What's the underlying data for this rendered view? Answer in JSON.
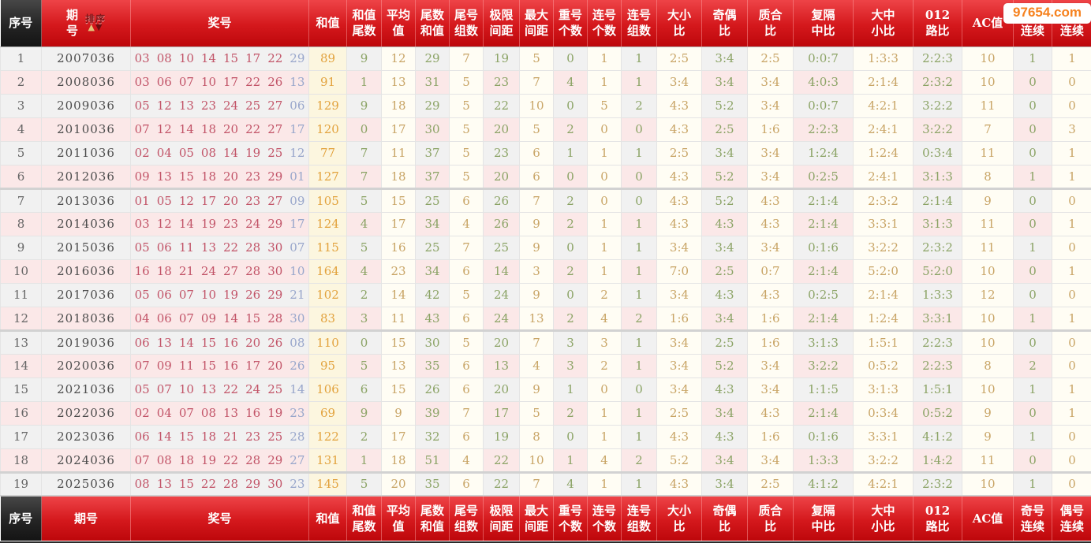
{
  "watermark": "97654.com",
  "sort": {
    "label": "排序",
    "up": "▲",
    "down": "▼"
  },
  "columns": [
    {
      "key": "seq",
      "label": "序号"
    },
    {
      "key": "period",
      "label": "期号",
      "label_top": "期\n号"
    },
    {
      "key": "numbers",
      "label": "奖号"
    },
    {
      "key": "sum",
      "label": "和值"
    },
    {
      "key": "sum_tail",
      "label": "和值\n尾数"
    },
    {
      "key": "avg",
      "label": "平均\n值"
    },
    {
      "key": "tail_sum",
      "label": "尾数\n和值"
    },
    {
      "key": "tail_groups",
      "label": "尾号\n组数"
    },
    {
      "key": "limit_gap",
      "label": "极限\n间距"
    },
    {
      "key": "max_gap",
      "label": "最大\n间距"
    },
    {
      "key": "repeat_count",
      "label": "重号\n个数"
    },
    {
      "key": "consec_count",
      "label": "连号\n个数"
    },
    {
      "key": "consec_groups",
      "label": "连号\n组数"
    },
    {
      "key": "big_small",
      "label": "大小\n比"
    },
    {
      "key": "odd_even",
      "label": "奇偶\n比"
    },
    {
      "key": "prime_comp",
      "label": "质合\n比"
    },
    {
      "key": "rep_skip_mid",
      "label": "复隔\n中比"
    },
    {
      "key": "big_mid_small",
      "label": "大中\n小比"
    },
    {
      "key": "r012",
      "label": "012\n路比"
    },
    {
      "key": "ac",
      "label": "AC值"
    },
    {
      "key": "odd_streak",
      "label": "奇号\n连续"
    },
    {
      "key": "even_streak",
      "label": "偶号\n连续"
    }
  ],
  "group_breaks": [
    6,
    12,
    18
  ],
  "rows": [
    {
      "seq": "1",
      "period": "2007036",
      "numbers": [
        "03",
        "08",
        "10",
        "14",
        "15",
        "17",
        "22"
      ],
      "tail": "29",
      "sum": "89",
      "sum_tail": "9",
      "avg": "12",
      "tail_sum": "29",
      "tail_groups": "7",
      "limit_gap": "19",
      "max_gap": "5",
      "repeat_count": "0",
      "consec_count": "1",
      "consec_groups": "1",
      "big_small": "2:5",
      "odd_even": "3:4",
      "prime_comp": "2:5",
      "rep_skip_mid": "0:0:7",
      "big_mid_small": "1:3:3",
      "r012": "2:2:3",
      "ac": "10",
      "odd_streak": "1",
      "even_streak": "1"
    },
    {
      "seq": "2",
      "period": "2008036",
      "numbers": [
        "03",
        "06",
        "07",
        "10",
        "17",
        "22",
        "26"
      ],
      "tail": "13",
      "sum": "91",
      "sum_tail": "1",
      "avg": "13",
      "tail_sum": "31",
      "tail_groups": "5",
      "limit_gap": "23",
      "max_gap": "7",
      "repeat_count": "4",
      "consec_count": "1",
      "consec_groups": "1",
      "big_small": "3:4",
      "odd_even": "3:4",
      "prime_comp": "3:4",
      "rep_skip_mid": "4:0:3",
      "big_mid_small": "2:1:4",
      "r012": "2:3:2",
      "ac": "10",
      "odd_streak": "0",
      "even_streak": "0"
    },
    {
      "seq": "3",
      "period": "2009036",
      "numbers": [
        "05",
        "12",
        "13",
        "23",
        "24",
        "25",
        "27"
      ],
      "tail": "06",
      "sum": "129",
      "sum_tail": "9",
      "avg": "18",
      "tail_sum": "29",
      "tail_groups": "5",
      "limit_gap": "22",
      "max_gap": "10",
      "repeat_count": "0",
      "consec_count": "5",
      "consec_groups": "2",
      "big_small": "4:3",
      "odd_even": "5:2",
      "prime_comp": "3:4",
      "rep_skip_mid": "0:0:7",
      "big_mid_small": "4:2:1",
      "r012": "3:2:2",
      "ac": "11",
      "odd_streak": "0",
      "even_streak": "0"
    },
    {
      "seq": "4",
      "period": "2010036",
      "numbers": [
        "07",
        "12",
        "14",
        "18",
        "20",
        "22",
        "27"
      ],
      "tail": "17",
      "sum": "120",
      "sum_tail": "0",
      "avg": "17",
      "tail_sum": "30",
      "tail_groups": "5",
      "limit_gap": "20",
      "max_gap": "5",
      "repeat_count": "2",
      "consec_count": "0",
      "consec_groups": "0",
      "big_small": "4:3",
      "odd_even": "2:5",
      "prime_comp": "1:6",
      "rep_skip_mid": "2:2:3",
      "big_mid_small": "2:4:1",
      "r012": "3:2:2",
      "ac": "7",
      "odd_streak": "0",
      "even_streak": "3"
    },
    {
      "seq": "5",
      "period": "2011036",
      "numbers": [
        "02",
        "04",
        "05",
        "08",
        "14",
        "19",
        "25"
      ],
      "tail": "12",
      "sum": "77",
      "sum_tail": "7",
      "avg": "11",
      "tail_sum": "37",
      "tail_groups": "5",
      "limit_gap": "23",
      "max_gap": "6",
      "repeat_count": "1",
      "consec_count": "1",
      "consec_groups": "1",
      "big_small": "2:5",
      "odd_even": "3:4",
      "prime_comp": "3:4",
      "rep_skip_mid": "1:2:4",
      "big_mid_small": "1:2:4",
      "r012": "0:3:4",
      "ac": "11",
      "odd_streak": "0",
      "even_streak": "1"
    },
    {
      "seq": "6",
      "period": "2012036",
      "numbers": [
        "09",
        "13",
        "15",
        "18",
        "20",
        "23",
        "29"
      ],
      "tail": "01",
      "sum": "127",
      "sum_tail": "7",
      "avg": "18",
      "tail_sum": "37",
      "tail_groups": "5",
      "limit_gap": "20",
      "max_gap": "6",
      "repeat_count": "0",
      "consec_count": "0",
      "consec_groups": "0",
      "big_small": "4:3",
      "odd_even": "5:2",
      "prime_comp": "3:4",
      "rep_skip_mid": "0:2:5",
      "big_mid_small": "2:4:1",
      "r012": "3:1:3",
      "ac": "8",
      "odd_streak": "1",
      "even_streak": "1"
    },
    {
      "seq": "7",
      "period": "2013036",
      "numbers": [
        "01",
        "05",
        "12",
        "17",
        "20",
        "23",
        "27"
      ],
      "tail": "09",
      "sum": "105",
      "sum_tail": "5",
      "avg": "15",
      "tail_sum": "25",
      "tail_groups": "6",
      "limit_gap": "26",
      "max_gap": "7",
      "repeat_count": "2",
      "consec_count": "0",
      "consec_groups": "0",
      "big_small": "4:3",
      "odd_even": "5:2",
      "prime_comp": "4:3",
      "rep_skip_mid": "2:1:4",
      "big_mid_small": "2:3:2",
      "r012": "2:1:4",
      "ac": "9",
      "odd_streak": "0",
      "even_streak": "0"
    },
    {
      "seq": "8",
      "period": "2014036",
      "numbers": [
        "03",
        "12",
        "14",
        "19",
        "23",
        "24",
        "29"
      ],
      "tail": "17",
      "sum": "124",
      "sum_tail": "4",
      "avg": "17",
      "tail_sum": "34",
      "tail_groups": "4",
      "limit_gap": "26",
      "max_gap": "9",
      "repeat_count": "2",
      "consec_count": "1",
      "consec_groups": "1",
      "big_small": "4:3",
      "odd_even": "4:3",
      "prime_comp": "4:3",
      "rep_skip_mid": "2:1:4",
      "big_mid_small": "3:3:1",
      "r012": "3:1:3",
      "ac": "11",
      "odd_streak": "0",
      "even_streak": "1"
    },
    {
      "seq": "9",
      "period": "2015036",
      "numbers": [
        "05",
        "06",
        "11",
        "13",
        "22",
        "28",
        "30"
      ],
      "tail": "07",
      "sum": "115",
      "sum_tail": "5",
      "avg": "16",
      "tail_sum": "25",
      "tail_groups": "7",
      "limit_gap": "25",
      "max_gap": "9",
      "repeat_count": "0",
      "consec_count": "1",
      "consec_groups": "1",
      "big_small": "3:4",
      "odd_even": "3:4",
      "prime_comp": "3:4",
      "rep_skip_mid": "0:1:6",
      "big_mid_small": "3:2:2",
      "r012": "2:3:2",
      "ac": "11",
      "odd_streak": "1",
      "even_streak": "0"
    },
    {
      "seq": "10",
      "period": "2016036",
      "numbers": [
        "16",
        "18",
        "21",
        "24",
        "27",
        "28",
        "30"
      ],
      "tail": "10",
      "sum": "164",
      "sum_tail": "4",
      "avg": "23",
      "tail_sum": "34",
      "tail_groups": "6",
      "limit_gap": "14",
      "max_gap": "3",
      "repeat_count": "2",
      "consec_count": "1",
      "consec_groups": "1",
      "big_small": "7:0",
      "odd_even": "2:5",
      "prime_comp": "0:7",
      "rep_skip_mid": "2:1:4",
      "big_mid_small": "5:2:0",
      "r012": "5:2:0",
      "ac": "10",
      "odd_streak": "0",
      "even_streak": "1"
    },
    {
      "seq": "11",
      "period": "2017036",
      "numbers": [
        "05",
        "06",
        "07",
        "10",
        "19",
        "26",
        "29"
      ],
      "tail": "21",
      "sum": "102",
      "sum_tail": "2",
      "avg": "14",
      "tail_sum": "42",
      "tail_groups": "5",
      "limit_gap": "24",
      "max_gap": "9",
      "repeat_count": "0",
      "consec_count": "2",
      "consec_groups": "1",
      "big_small": "3:4",
      "odd_even": "4:3",
      "prime_comp": "4:3",
      "rep_skip_mid": "0:2:5",
      "big_mid_small": "2:1:4",
      "r012": "1:3:3",
      "ac": "12",
      "odd_streak": "0",
      "even_streak": "0"
    },
    {
      "seq": "12",
      "period": "2018036",
      "numbers": [
        "04",
        "06",
        "07",
        "09",
        "14",
        "15",
        "28"
      ],
      "tail": "30",
      "sum": "83",
      "sum_tail": "3",
      "avg": "11",
      "tail_sum": "43",
      "tail_groups": "6",
      "limit_gap": "24",
      "max_gap": "13",
      "repeat_count": "2",
      "consec_count": "4",
      "consec_groups": "2",
      "big_small": "1:6",
      "odd_even": "3:4",
      "prime_comp": "1:6",
      "rep_skip_mid": "2:1:4",
      "big_mid_small": "1:2:4",
      "r012": "3:3:1",
      "ac": "10",
      "odd_streak": "1",
      "even_streak": "1"
    },
    {
      "seq": "13",
      "period": "2019036",
      "numbers": [
        "06",
        "13",
        "14",
        "15",
        "16",
        "20",
        "26"
      ],
      "tail": "08",
      "sum": "110",
      "sum_tail": "0",
      "avg": "15",
      "tail_sum": "30",
      "tail_groups": "5",
      "limit_gap": "20",
      "max_gap": "7",
      "repeat_count": "3",
      "consec_count": "3",
      "consec_groups": "1",
      "big_small": "3:4",
      "odd_even": "2:5",
      "prime_comp": "1:6",
      "rep_skip_mid": "3:1:3",
      "big_mid_small": "1:5:1",
      "r012": "2:2:3",
      "ac": "10",
      "odd_streak": "0",
      "even_streak": "0"
    },
    {
      "seq": "14",
      "period": "2020036",
      "numbers": [
        "07",
        "09",
        "11",
        "15",
        "16",
        "17",
        "20"
      ],
      "tail": "26",
      "sum": "95",
      "sum_tail": "5",
      "avg": "13",
      "tail_sum": "35",
      "tail_groups": "6",
      "limit_gap": "13",
      "max_gap": "4",
      "repeat_count": "3",
      "consec_count": "2",
      "consec_groups": "1",
      "big_small": "3:4",
      "odd_even": "5:2",
      "prime_comp": "3:4",
      "rep_skip_mid": "3:2:2",
      "big_mid_small": "0:5:2",
      "r012": "2:2:3",
      "ac": "8",
      "odd_streak": "2",
      "even_streak": "0"
    },
    {
      "seq": "15",
      "period": "2021036",
      "numbers": [
        "05",
        "07",
        "10",
        "13",
        "22",
        "24",
        "25"
      ],
      "tail": "14",
      "sum": "106",
      "sum_tail": "6",
      "avg": "15",
      "tail_sum": "26",
      "tail_groups": "6",
      "limit_gap": "20",
      "max_gap": "9",
      "repeat_count": "1",
      "consec_count": "0",
      "consec_groups": "0",
      "big_small": "3:4",
      "odd_even": "4:3",
      "prime_comp": "3:4",
      "rep_skip_mid": "1:1:5",
      "big_mid_small": "3:1:3",
      "r012": "1:5:1",
      "ac": "10",
      "odd_streak": "1",
      "even_streak": "1"
    },
    {
      "seq": "16",
      "period": "2022036",
      "numbers": [
        "02",
        "04",
        "07",
        "08",
        "13",
        "16",
        "19"
      ],
      "tail": "23",
      "sum": "69",
      "sum_tail": "9",
      "avg": "9",
      "tail_sum": "39",
      "tail_groups": "7",
      "limit_gap": "17",
      "max_gap": "5",
      "repeat_count": "2",
      "consec_count": "1",
      "consec_groups": "1",
      "big_small": "2:5",
      "odd_even": "3:4",
      "prime_comp": "4:3",
      "rep_skip_mid": "2:1:4",
      "big_mid_small": "0:3:4",
      "r012": "0:5:2",
      "ac": "9",
      "odd_streak": "0",
      "even_streak": "1"
    },
    {
      "seq": "17",
      "period": "2023036",
      "numbers": [
        "06",
        "14",
        "15",
        "18",
        "21",
        "23",
        "25"
      ],
      "tail": "28",
      "sum": "122",
      "sum_tail": "2",
      "avg": "17",
      "tail_sum": "32",
      "tail_groups": "6",
      "limit_gap": "19",
      "max_gap": "8",
      "repeat_count": "0",
      "consec_count": "1",
      "consec_groups": "1",
      "big_small": "4:3",
      "odd_even": "4:3",
      "prime_comp": "1:6",
      "rep_skip_mid": "0:1:6",
      "big_mid_small": "3:3:1",
      "r012": "4:1:2",
      "ac": "9",
      "odd_streak": "1",
      "even_streak": "0"
    },
    {
      "seq": "18",
      "period": "2024036",
      "numbers": [
        "07",
        "08",
        "18",
        "19",
        "22",
        "28",
        "29"
      ],
      "tail": "27",
      "sum": "131",
      "sum_tail": "1",
      "avg": "18",
      "tail_sum": "51",
      "tail_groups": "4",
      "limit_gap": "22",
      "max_gap": "10",
      "repeat_count": "1",
      "consec_count": "4",
      "consec_groups": "2",
      "big_small": "5:2",
      "odd_even": "3:4",
      "prime_comp": "3:4",
      "rep_skip_mid": "1:3:3",
      "big_mid_small": "3:2:2",
      "r012": "1:4:2",
      "ac": "11",
      "odd_streak": "0",
      "even_streak": "0"
    },
    {
      "seq": "19",
      "period": "2025036",
      "numbers": [
        "08",
        "13",
        "15",
        "22",
        "28",
        "29",
        "30"
      ],
      "tail": "23",
      "sum": "145",
      "sum_tail": "5",
      "avg": "20",
      "tail_sum": "35",
      "tail_groups": "6",
      "limit_gap": "22",
      "max_gap": "7",
      "repeat_count": "4",
      "consec_count": "1",
      "consec_groups": "1",
      "big_small": "4:3",
      "odd_even": "3:4",
      "prime_comp": "2:5",
      "rep_skip_mid": "4:1:2",
      "big_mid_small": "4:2:1",
      "r012": "2:3:2",
      "ac": "10",
      "odd_streak": "1",
      "even_streak": "0"
    }
  ]
}
